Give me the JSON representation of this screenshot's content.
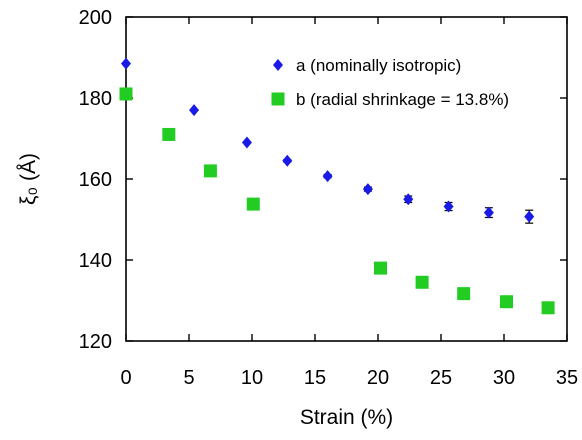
{
  "chart_data": {
    "type": "scatter",
    "xlabel": "Strain (%)",
    "ylabel": "ξ₀ (Å)",
    "xlim": [
      0,
      35
    ],
    "ylim": [
      120,
      200
    ],
    "xticks": [
      0,
      5,
      10,
      15,
      20,
      25,
      30,
      35
    ],
    "yticks": [
      120,
      140,
      160,
      180,
      200
    ],
    "grid": false,
    "legend_position": "top-right",
    "series": [
      {
        "name": "a (nominally isotropic)",
        "marker": "diamond",
        "color": "#1a1ae6",
        "x": [
          0,
          5.4,
          9.6,
          12.8,
          16.0,
          19.2,
          22.4,
          25.6,
          28.8,
          32.0
        ],
        "y": [
          188.5,
          177.0,
          169.0,
          164.5,
          160.7,
          157.5,
          155.0,
          153.2,
          151.7,
          150.7
        ],
        "y_error": [
          0,
          0,
          0,
          0.3,
          0.4,
          0.5,
          0.8,
          1.0,
          1.2,
          1.6
        ]
      },
      {
        "name": "b (radial shrinkage = 13.8%)",
        "marker": "square",
        "color": "#22cc22",
        "x": [
          0,
          3.4,
          6.7,
          10.1,
          20.2,
          23.5,
          26.8,
          30.2,
          33.5
        ],
        "y": [
          181.0,
          171.0,
          162.0,
          153.8,
          138.0,
          134.5,
          131.7,
          129.7,
          128.2
        ]
      }
    ]
  }
}
